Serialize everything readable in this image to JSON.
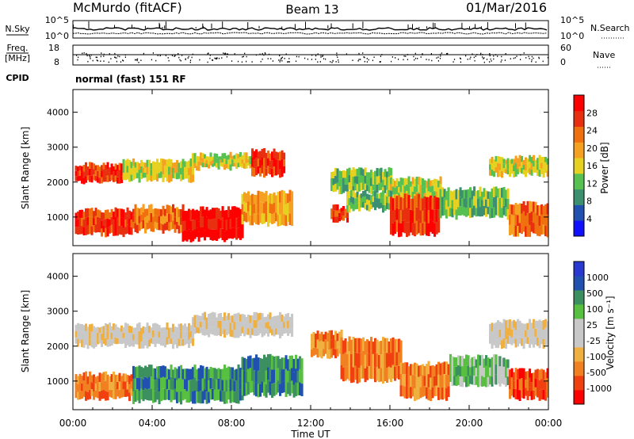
{
  "header": {
    "station": "McMurdo (fitACF)",
    "beam": "Beam 13",
    "date": "01/Mar/2016"
  },
  "noise_panel": {
    "left_label": "N.Sky",
    "right_label": "N.Search",
    "left_ticks": [
      "10^5",
      "10^0"
    ],
    "right_ticks": [
      "10^5",
      "10^0"
    ]
  },
  "freq_panel": {
    "left_label_1": "Freq.",
    "left_label_2": "[MHz]",
    "right_label": "Nave",
    "left_ticks": [
      "18",
      "8"
    ],
    "right_ticks": [
      "60",
      "0"
    ]
  },
  "cpid": {
    "label": "CPID",
    "text": "normal (fast) 151 RF"
  },
  "colors": {
    "power_scale": [
      "#1010ff",
      "#2050b0",
      "#3c9070",
      "#56c050",
      "#e6d020",
      "#f5a020",
      "#f07010",
      "#e83010",
      "#ff0000"
    ],
    "velocity_scale": [
      "#ff0000",
      "#f04010",
      "#f08020",
      "#f0b040",
      "#c8c8c8",
      "#c8c8c8",
      "#58c040",
      "#3c9060",
      "#2050b0",
      "#2838d0"
    ]
  },
  "chart_data": [
    {
      "type": "heatmap",
      "name": "power",
      "ylabel": "Slant Range [km]",
      "yticks": [
        1000,
        2000,
        3000,
        4000
      ],
      "ylim": [
        180,
        4650
      ],
      "xlim": [
        0,
        24
      ],
      "colorbar_label": "Power [dB]",
      "colorbar_ticks": [
        "4",
        "8",
        "12",
        "16",
        "20",
        "24",
        "28"
      ],
      "bands": [
        {
          "start": 0.1,
          "end": 2.5,
          "r0": 2000,
          "r1": 2500,
          "level": 7
        },
        {
          "start": 2.5,
          "end": 6.0,
          "r0": 2050,
          "r1": 2600,
          "level": 4
        },
        {
          "start": 6.0,
          "end": 9.0,
          "r0": 2400,
          "r1": 2800,
          "level": 4
        },
        {
          "start": 9.0,
          "end": 10.6,
          "r0": 2200,
          "r1": 2900,
          "level": 7
        },
        {
          "start": 13.0,
          "end": 16.0,
          "r0": 1700,
          "r1": 2350,
          "level": 3
        },
        {
          "start": 16.0,
          "end": 18.6,
          "r0": 1500,
          "r1": 2100,
          "level": 4
        },
        {
          "start": 21.0,
          "end": 24.0,
          "r0": 2200,
          "r1": 2700,
          "level": 4
        },
        {
          "start": 0.1,
          "end": 3.0,
          "r0": 500,
          "r1": 1200,
          "level": 7
        },
        {
          "start": 3.0,
          "end": 5.5,
          "r0": 600,
          "r1": 1300,
          "level": 6
        },
        {
          "start": 5.5,
          "end": 8.5,
          "r0": 350,
          "r1": 1250,
          "level": 8
        },
        {
          "start": 8.5,
          "end": 11.0,
          "r0": 800,
          "r1": 1700,
          "level": 5
        },
        {
          "start": 13.0,
          "end": 13.8,
          "r0": 900,
          "r1": 1300,
          "level": 7
        },
        {
          "start": 13.8,
          "end": 16.0,
          "r0": 1200,
          "r1": 1700,
          "level": 3
        },
        {
          "start": 16.0,
          "end": 18.5,
          "r0": 500,
          "r1": 1600,
          "level": 7
        },
        {
          "start": 18.5,
          "end": 22.0,
          "r0": 1000,
          "r1": 1800,
          "level": 3
        },
        {
          "start": 22.0,
          "end": 24.0,
          "r0": 500,
          "r1": 1400,
          "level": 6
        }
      ]
    },
    {
      "type": "heatmap",
      "name": "velocity",
      "ylabel": "Slant Range [km]",
      "yticks": [
        1000,
        2000,
        3000,
        4000
      ],
      "ylim": [
        180,
        4650
      ],
      "xlim": [
        0,
        24
      ],
      "xlabel": "Time UT",
      "xticks": [
        "00:00",
        "04:00",
        "08:00",
        "12:00",
        "16:00",
        "20:00",
        "00:00"
      ],
      "colorbar_label": "Velocity [m s⁻¹]",
      "colorbar_ticks": [
        "1000",
        "500",
        "100",
        "25",
        "-25",
        "-100",
        "-500",
        "-1000"
      ],
      "bands": [
        {
          "start": 0.1,
          "end": 6.0,
          "r0": 2000,
          "r1": 2600,
          "level": 4
        },
        {
          "start": 6.0,
          "end": 11.0,
          "r0": 2300,
          "r1": 2900,
          "level": 4
        },
        {
          "start": 21.0,
          "end": 24.0,
          "r0": 2000,
          "r1": 2700,
          "level": 4
        },
        {
          "start": 0.1,
          "end": 3.0,
          "r0": 500,
          "r1": 1200,
          "level": 2
        },
        {
          "start": 3.0,
          "end": 8.5,
          "r0": 400,
          "r1": 1400,
          "level": 7
        },
        {
          "start": 8.5,
          "end": 11.5,
          "r0": 600,
          "r1": 1700,
          "level": 7
        },
        {
          "start": 12.0,
          "end": 13.5,
          "r0": 1700,
          "r1": 2400,
          "level": 2
        },
        {
          "start": 13.5,
          "end": 16.5,
          "r0": 1000,
          "r1": 2200,
          "level": 2
        },
        {
          "start": 16.5,
          "end": 19.0,
          "r0": 500,
          "r1": 1500,
          "level": 2
        },
        {
          "start": 19.0,
          "end": 22.0,
          "r0": 900,
          "r1": 1700,
          "level": 6
        },
        {
          "start": 22.0,
          "end": 24.0,
          "r0": 500,
          "r1": 1300,
          "level": 1
        }
      ]
    }
  ]
}
